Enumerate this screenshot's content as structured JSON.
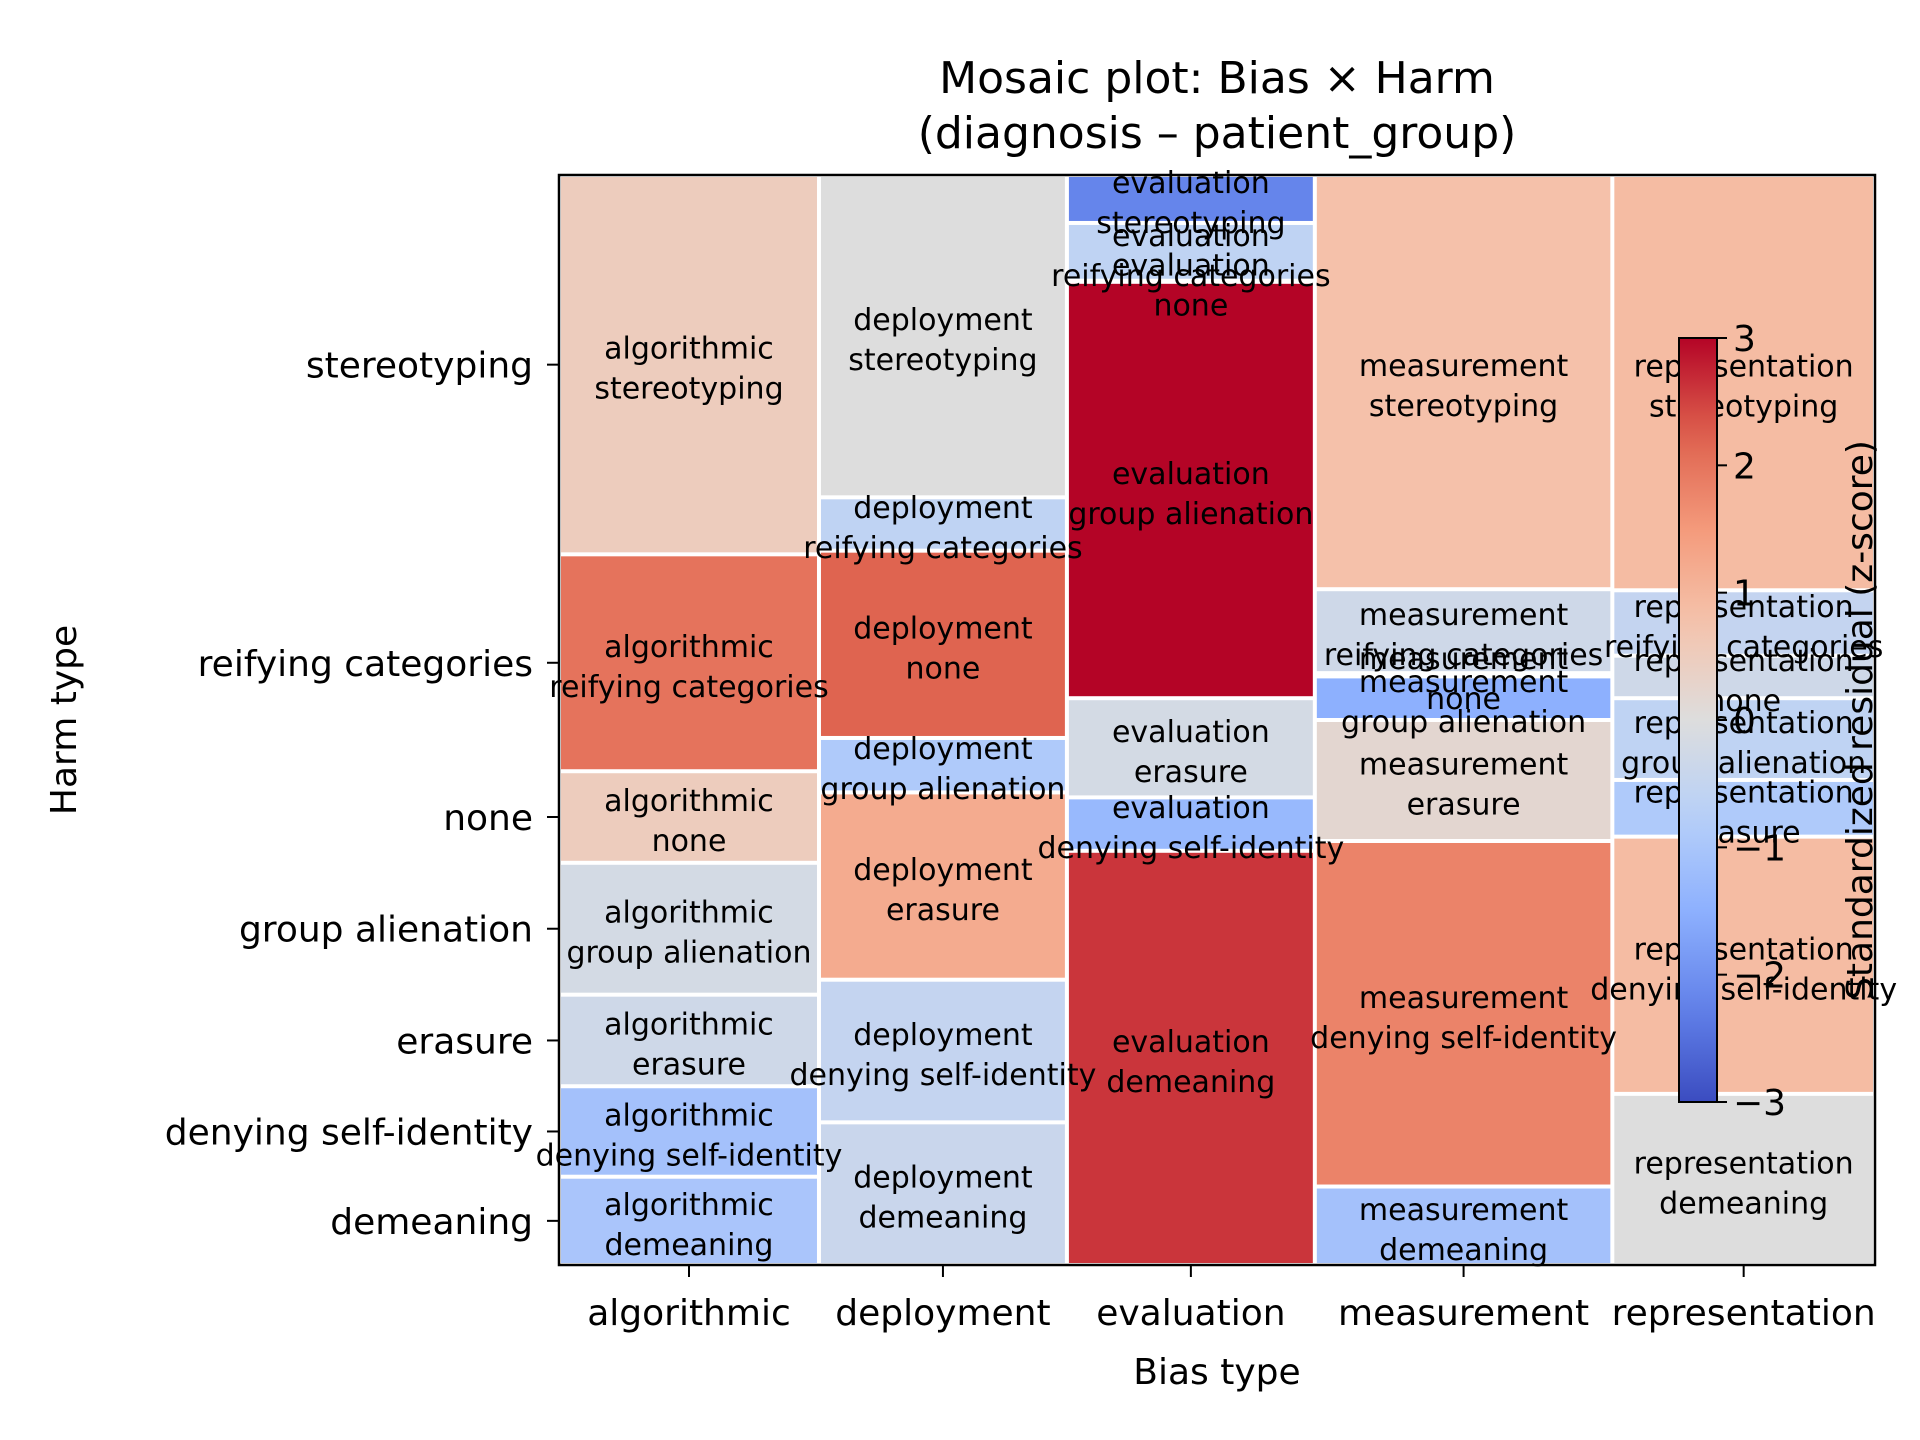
{
  "chart_data": {
    "type": "mosaic",
    "title_line1": "Mosaic plot: Bias × Harm",
    "title_line2": "(diagnosis – patient_group)",
    "xlabel": "Bias type",
    "ylabel": "Harm type",
    "colorbar_label": "Standardized residual (z-score)",
    "colorbar_range": [
      -3,
      3
    ],
    "colorbar_ticks": [
      "−3",
      "−2",
      "−1",
      "0",
      "1",
      "2",
      "3"
    ],
    "colormap": "coolwarm",
    "x_categories": [
      "algorithmic",
      "deployment",
      "evaluation",
      "measurement",
      "representation"
    ],
    "y_tick_labels": [
      "stereotyping",
      "reifying categories",
      "none",
      "group alienation",
      "erasure",
      "denying self-identity",
      "demeaning"
    ],
    "columns": [
      {
        "bias": "algorithmic",
        "width": 0.194,
        "cells": [
          {
            "harm": "demeaning",
            "share": 0.081,
            "residual": -1.0,
            "label_line1": "algorithmic",
            "label_line2": "demeaning"
          },
          {
            "harm": "denying self-identity",
            "share": 0.083,
            "residual": -1.1,
            "label_line1": "algorithmic",
            "label_line2": "denying self-identity"
          },
          {
            "harm": "erasure",
            "share": 0.084,
            "residual": -0.3,
            "label_line1": "algorithmic",
            "label_line2": "erasure"
          },
          {
            "harm": "group alienation",
            "share": 0.121,
            "residual": -0.2,
            "label_line1": "algorithmic",
            "label_line2": "group alienation"
          },
          {
            "harm": "none",
            "share": 0.084,
            "residual": 0.5,
            "label_line1": "algorithmic",
            "label_line2": "none"
          },
          {
            "harm": "reifying categories",
            "share": 0.199,
            "residual": 2.0,
            "label_line1": "algorithmic",
            "label_line2": "reifying categories"
          },
          {
            "harm": "stereotyping",
            "share": 0.348,
            "residual": 0.5,
            "label_line1": "algorithmic",
            "label_line2": "stereotyping"
          }
        ]
      },
      {
        "bias": "deployment",
        "width": 0.185,
        "cells": [
          {
            "harm": "demeaning",
            "share": 0.131,
            "residual": -0.4,
            "label_line1": "deployment",
            "label_line2": "demeaning"
          },
          {
            "harm": "denying self-identity",
            "share": 0.131,
            "residual": -0.5,
            "label_line1": "deployment",
            "label_line2": "denying self-identity"
          },
          {
            "harm": "erasure",
            "share": 0.172,
            "residual": 1.2,
            "label_line1": "deployment",
            "label_line2": "erasure"
          },
          {
            "harm": "group alienation",
            "share": 0.05,
            "residual": -0.9,
            "label_line1": "deployment",
            "label_line2": "group alienation"
          },
          {
            "harm": "none",
            "share": 0.172,
            "residual": 2.2,
            "label_line1": "deployment",
            "label_line2": "none"
          },
          {
            "harm": "reifying categories",
            "share": 0.049,
            "residual": -0.6,
            "label_line1": "deployment",
            "label_line2": "reifying categories"
          },
          {
            "harm": "stereotyping",
            "share": 0.296,
            "residual": 0.0,
            "label_line1": "deployment",
            "label_line2": "stereotyping"
          }
        ]
      },
      {
        "bias": "evaluation",
        "width": 0.185,
        "cells": [
          {
            "harm": "demeaning",
            "share": 0.38,
            "residual": 2.6,
            "label_line1": "evaluation",
            "label_line2": "demeaning"
          },
          {
            "harm": "denying self-identity",
            "share": 0.049,
            "residual": -1.3,
            "label_line1": "evaluation",
            "label_line2": "denying self-identity"
          },
          {
            "harm": "erasure",
            "share": 0.091,
            "residual": -0.2,
            "label_line1": "evaluation",
            "label_line2": "erasure"
          },
          {
            "harm": "group alienation",
            "share": 0.382,
            "residual": 3.0,
            "label_line1": "evaluation",
            "label_line2": "group alienation"
          },
          {
            "harm": "none",
            "share": 0.001,
            "residual": -2.2,
            "label_line1": "evaluation",
            "label_line2": "none"
          },
          {
            "harm": "reifying categories",
            "share": 0.053,
            "residual": -0.6,
            "label_line1": "evaluation",
            "label_line2": "reifying categories"
          },
          {
            "harm": "stereotyping",
            "share": 0.044,
            "residual": -2.2,
            "label_line1": "evaluation",
            "label_line2": "stereotyping"
          }
        ]
      },
      {
        "bias": "measurement",
        "width": 0.222,
        "cells": [
          {
            "harm": "demeaning",
            "share": 0.072,
            "residual": -1.1,
            "label_line1": "measurement",
            "label_line2": "demeaning"
          },
          {
            "harm": "denying self-identity",
            "share": 0.317,
            "residual": 1.8,
            "label_line1": "measurement",
            "label_line2": "denying self-identity"
          },
          {
            "harm": "erasure",
            "share": 0.111,
            "residual": 0.2,
            "label_line1": "measurement",
            "label_line2": "erasure"
          },
          {
            "harm": "group alienation",
            "share": 0.04,
            "residual": -1.5,
            "label_line1": "measurement",
            "label_line2": "group alienation"
          },
          {
            "harm": "none",
            "share": 0.003,
            "residual": -0.8,
            "label_line1": "measurement",
            "label_line2": "none"
          },
          {
            "harm": "reifying categories",
            "share": 0.077,
            "residual": -0.3,
            "label_line1": "measurement",
            "label_line2": "reifying categories"
          },
          {
            "harm": "stereotyping",
            "share": 0.38,
            "residual": 0.8,
            "label_line1": "measurement",
            "label_line2": "stereotyping"
          }
        ]
      },
      {
        "bias": "representation",
        "width": 0.196,
        "cells": [
          {
            "harm": "demeaning",
            "share": 0.157,
            "residual": 0.0,
            "label_line1": "representation",
            "label_line2": "demeaning"
          },
          {
            "harm": "denying self-identity",
            "share": 0.236,
            "residual": 0.9,
            "label_line1": "representation",
            "label_line2": "denying self-identity"
          },
          {
            "harm": "erasure",
            "share": 0.052,
            "residual": -0.9,
            "label_line1": "representation",
            "label_line2": "erasure"
          },
          {
            "harm": "group alienation",
            "share": 0.075,
            "residual": -0.6,
            "label_line1": "representation",
            "label_line2": "group alienation"
          },
          {
            "harm": "none",
            "share": 0.039,
            "residual": -0.3,
            "label_line1": "representation",
            "label_line2": "none"
          },
          {
            "harm": "reifying categories",
            "share": 0.06,
            "residual": -0.5,
            "label_line1": "representation",
            "label_line2": "reifying categories"
          },
          {
            "harm": "stereotyping",
            "share": 0.381,
            "residual": 0.9,
            "label_line1": "representation",
            "label_line2": "stereotyping"
          }
        ]
      }
    ]
  }
}
